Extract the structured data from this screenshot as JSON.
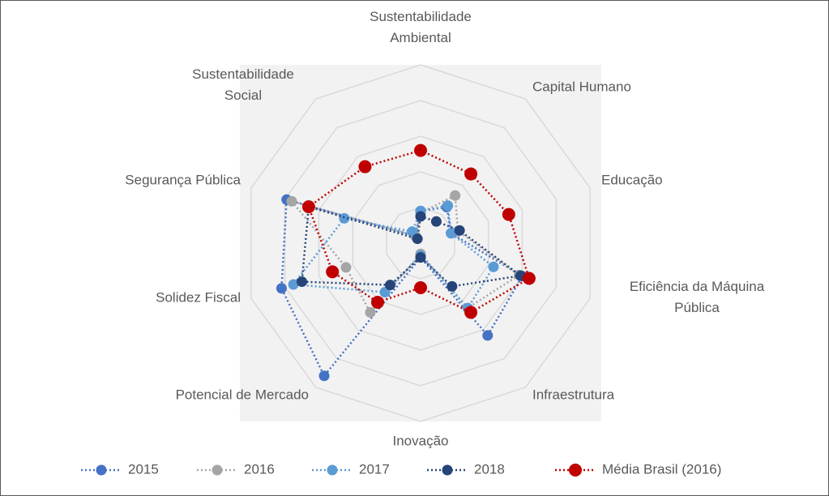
{
  "chart_data": {
    "type": "radar",
    "categories": [
      "Sustentabilidade\nAmbiental",
      "Capital Humano",
      "Educação",
      "Eficiência da Máquina\nPública",
      "Infraestrutura",
      "Inovação",
      "Potencial de Mercado",
      "Solidez Fiscal",
      "Segurança Pública",
      "Sustentabilidade\nSocial"
    ],
    "rlim": [
      0,
      100
    ],
    "rticks": [
      20,
      40,
      60,
      80,
      100
    ],
    "grid": true,
    "series": [
      {
        "name": "2015",
        "color": "#4472c4",
        "values": [
          18,
          25,
          18,
          60,
          64,
          8,
          92,
          82,
          79,
          5
        ]
      },
      {
        "name": "2016",
        "color": "#a5a5a5",
        "values": [
          17,
          33,
          22,
          58,
          45,
          6,
          48,
          44,
          76,
          5
        ]
      },
      {
        "name": "2017",
        "color": "#5b9bd5",
        "values": [
          18,
          26,
          18,
          43,
          45,
          7,
          34,
          75,
          45,
          8
        ]
      },
      {
        "name": "2018",
        "color": "#264478",
        "values": [
          15,
          15,
          23,
          59,
          30,
          8,
          29,
          70,
          66,
          3
        ]
      },
      {
        "name": "Média Brasil (2016)",
        "color": "#c00000",
        "values": [
          52,
          48,
          52,
          64,
          48,
          25,
          41,
          52,
          66,
          53
        ]
      }
    ]
  }
}
